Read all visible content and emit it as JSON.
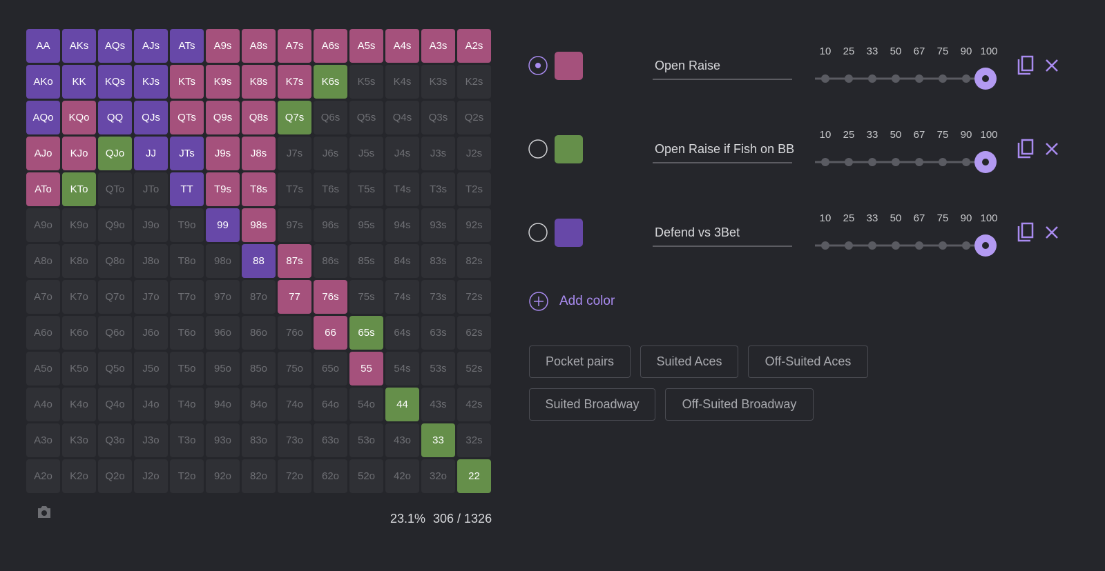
{
  "grid": {
    "rows": [
      [
        "AA",
        "AKs",
        "AQs",
        "AJs",
        "ATs",
        "A9s",
        "A8s",
        "A7s",
        "A6s",
        "A5s",
        "A4s",
        "A3s",
        "A2s"
      ],
      [
        "AKo",
        "KK",
        "KQs",
        "KJs",
        "KTs",
        "K9s",
        "K8s",
        "K7s",
        "K6s",
        "K5s",
        "K4s",
        "K3s",
        "K2s"
      ],
      [
        "AQo",
        "KQo",
        "QQ",
        "QJs",
        "QTs",
        "Q9s",
        "Q8s",
        "Q7s",
        "Q6s",
        "Q5s",
        "Q4s",
        "Q3s",
        "Q2s"
      ],
      [
        "AJo",
        "KJo",
        "QJo",
        "JJ",
        "JTs",
        "J9s",
        "J8s",
        "J7s",
        "J6s",
        "J5s",
        "J4s",
        "J3s",
        "J2s"
      ],
      [
        "ATo",
        "KTo",
        "QTo",
        "JTo",
        "TT",
        "T9s",
        "T8s",
        "T7s",
        "T6s",
        "T5s",
        "T4s",
        "T3s",
        "T2s"
      ],
      [
        "A9o",
        "K9o",
        "Q9o",
        "J9o",
        "T9o",
        "99",
        "98s",
        "97s",
        "96s",
        "95s",
        "94s",
        "93s",
        "92s"
      ],
      [
        "A8o",
        "K8o",
        "Q8o",
        "J8o",
        "T8o",
        "98o",
        "88",
        "87s",
        "86s",
        "85s",
        "84s",
        "83s",
        "82s"
      ],
      [
        "A7o",
        "K7o",
        "Q7o",
        "J7o",
        "T7o",
        "97o",
        "87o",
        "77",
        "76s",
        "75s",
        "74s",
        "73s",
        "72s"
      ],
      [
        "A6o",
        "K6o",
        "Q6o",
        "J6o",
        "T6o",
        "96o",
        "86o",
        "76o",
        "66",
        "65s",
        "64s",
        "63s",
        "62s"
      ],
      [
        "A5o",
        "K5o",
        "Q5o",
        "J5o",
        "T5o",
        "95o",
        "85o",
        "75o",
        "65o",
        "55",
        "54s",
        "53s",
        "52s"
      ],
      [
        "A4o",
        "K4o",
        "Q4o",
        "J4o",
        "T4o",
        "94o",
        "84o",
        "74o",
        "64o",
        "54o",
        "44",
        "43s",
        "42s"
      ],
      [
        "A3o",
        "K3o",
        "Q3o",
        "J3o",
        "T3o",
        "93o",
        "83o",
        "73o",
        "63o",
        "53o",
        "43o",
        "33",
        "32s"
      ],
      [
        "A2o",
        "K2o",
        "Q2o",
        "J2o",
        "T2o",
        "92o",
        "82o",
        "72o",
        "62o",
        "52o",
        "42o",
        "32o",
        "22"
      ]
    ],
    "colors": [
      [
        "#6748a8",
        "#6748a8",
        "#6748a8",
        "#6748a8",
        "#6748a8",
        "#a5517c",
        "#a5517c",
        "#a5517c",
        "#a5517c",
        "#a5517c",
        "#a5517c",
        "#a5517c",
        "#a5517c"
      ],
      [
        "#6748a8",
        "#6748a8",
        "#6748a8",
        "#6748a8",
        "#a5517c",
        "#a5517c",
        "#a5517c",
        "#a5517c",
        "#658f4a",
        null,
        null,
        null,
        null
      ],
      [
        "#6748a8",
        "#a5517c",
        "#6748a8",
        "#6748a8",
        "#a5517c",
        "#a5517c",
        "#a5517c",
        "#658f4a",
        null,
        null,
        null,
        null,
        null
      ],
      [
        "#a5517c",
        "#a5517c",
        "#658f4a",
        "#6748a8",
        "#6748a8",
        "#a5517c",
        "#a5517c",
        null,
        null,
        null,
        null,
        null,
        null
      ],
      [
        "#a5517c",
        "#658f4a",
        null,
        null,
        "#6748a8",
        "#a5517c",
        "#a5517c",
        null,
        null,
        null,
        null,
        null,
        null
      ],
      [
        null,
        null,
        null,
        null,
        null,
        "#6748a8",
        "#a5517c",
        null,
        null,
        null,
        null,
        null,
        null
      ],
      [
        null,
        null,
        null,
        null,
        null,
        null,
        "#6748a8",
        "#a5517c",
        null,
        null,
        null,
        null,
        null
      ],
      [
        null,
        null,
        null,
        null,
        null,
        null,
        null,
        "#a5517c",
        "#a5517c",
        null,
        null,
        null,
        null
      ],
      [
        null,
        null,
        null,
        null,
        null,
        null,
        null,
        null,
        "#a5517c",
        "#658f4a",
        null,
        null,
        null
      ],
      [
        null,
        null,
        null,
        null,
        null,
        null,
        null,
        null,
        null,
        "#a5517c",
        null,
        null,
        null
      ],
      [
        null,
        null,
        null,
        null,
        null,
        null,
        null,
        null,
        null,
        null,
        "#658f4a",
        null,
        null
      ],
      [
        null,
        null,
        null,
        null,
        null,
        null,
        null,
        null,
        null,
        null,
        null,
        "#658f4a",
        null
      ],
      [
        null,
        null,
        null,
        null,
        null,
        null,
        null,
        null,
        null,
        null,
        null,
        null,
        "#658f4a"
      ]
    ]
  },
  "footer": {
    "percent": "23.1%",
    "combos": "306 / 1326"
  },
  "actions": [
    {
      "name": "Open Raise",
      "color": "#a5517c",
      "selected": true,
      "ticks": [
        10,
        25,
        33,
        50,
        67,
        75,
        90,
        100
      ],
      "value": 100
    },
    {
      "name": "Open Raise if Fish on BB",
      "color": "#658f4a",
      "selected": false,
      "ticks": [
        10,
        25,
        33,
        50,
        67,
        75,
        90,
        100
      ],
      "value": 100
    },
    {
      "name": "Defend vs 3Bet",
      "color": "#6748a8",
      "selected": false,
      "ticks": [
        10,
        25,
        33,
        50,
        67,
        75,
        90,
        100
      ],
      "value": 100
    }
  ],
  "add_color": "Add color",
  "presets": [
    [
      "Pocket pairs",
      "Suited Aces",
      "Off-Suited Aces"
    ],
    [
      "Suited Broadway",
      "Off-Suited Broadway"
    ]
  ]
}
